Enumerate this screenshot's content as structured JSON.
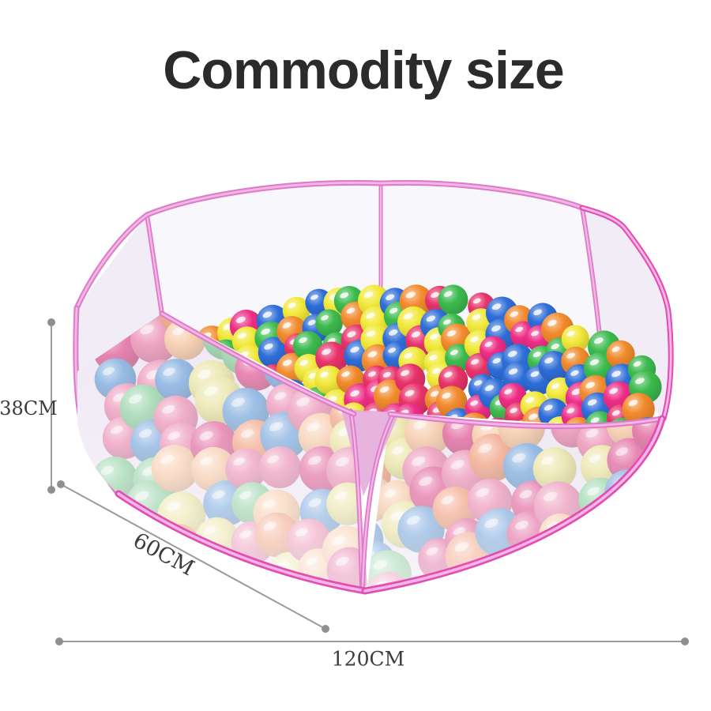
{
  "title": {
    "text": "Commodity size",
    "color": "#2b2b2b"
  },
  "figure": {
    "description": "pink hexagonal pop-up ball pit play pen filled with colorful ocean balls",
    "frame": {
      "tube_pink": "#dd7cc9",
      "tube_highlight": "#f4b6e6",
      "tube_magenta": "#e14fb2",
      "mesh_back": "#f8f7fb",
      "mesh_side": "#f2ecf6",
      "mesh_front_base": "#ece4f2",
      "seam_triangle": "#e4acdc"
    },
    "balls_vivid": [
      "#ee2d86",
      "#e8336b",
      "#2e6ed8",
      "#3cbb4e",
      "#f2e93a",
      "#f28b2d"
    ],
    "balls_pastel": [
      "#f2a284",
      "#eb8fb4",
      "#e0669c",
      "#94d2a6",
      "#7aa8dd",
      "#e9e3a2",
      "#f7c9a8"
    ]
  },
  "dimensions": {
    "line_color": "#9b9b9b",
    "dot_color": "#8f8f8f",
    "label_color": "#3c3c3c",
    "height": {
      "label": "38CM"
    },
    "depth": {
      "label": "60CM"
    },
    "width": {
      "label": "120CM"
    }
  }
}
